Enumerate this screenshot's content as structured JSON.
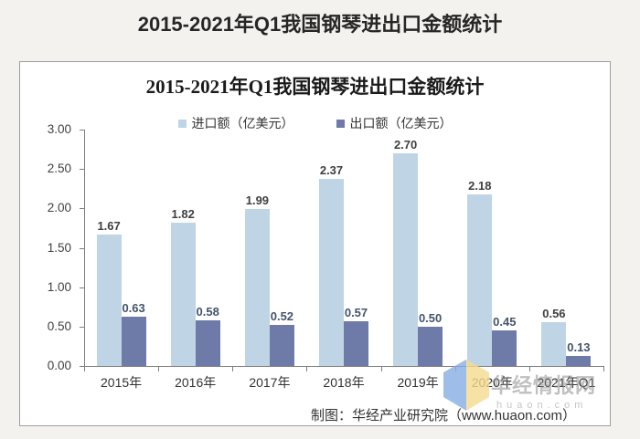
{
  "page": {
    "title": "2015-2021年Q1我国钢琴进出口金额统计",
    "background_color": "#f3f2ef"
  },
  "chart": {
    "title": "2015-2021年Q1我国钢琴进出口金额统计",
    "source_note": "制图：华经产业研究院（www.huaon.com）",
    "watermark": {
      "brand": "华经情报网",
      "domain": "huaon.com",
      "logo_color_left": "#86ade4",
      "logo_color_right": "#f5db8f"
    }
  },
  "chart_data": {
    "type": "bar",
    "title": "2015-2021年Q1我国钢琴进出口金额统计",
    "categories": [
      "2015年",
      "2016年",
      "2017年",
      "2018年",
      "2019年",
      "2020年",
      "2021年Q1"
    ],
    "series": [
      {
        "name": "进口额（亿美元）",
        "color": "#bfd4e5",
        "label_color": "#3f3f3f",
        "values": [
          1.67,
          1.82,
          1.99,
          2.37,
          2.7,
          2.18,
          0.56
        ]
      },
      {
        "name": "出口额（亿美元）",
        "color": "#6e7aa7",
        "label_color": "#44546a",
        "values": [
          0.63,
          0.58,
          0.52,
          0.57,
          0.5,
          0.45,
          0.13
        ]
      }
    ],
    "ylim": [
      0,
      3.0
    ],
    "ytick_step": 0.5,
    "ytick_labels": [
      "0.00",
      "0.50",
      "1.00",
      "1.50",
      "2.00",
      "2.50",
      "3.00"
    ],
    "axis_color": "#7f7f7f",
    "grid": false,
    "legend_position": "top-center"
  }
}
